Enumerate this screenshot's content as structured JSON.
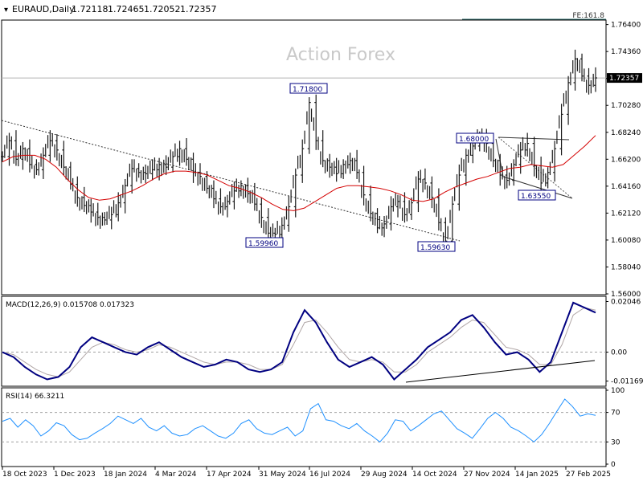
{
  "header": {
    "symbol": "EURAUD,Daily",
    "open": "1.72118",
    "high": "1.72465",
    "low": "1.72052",
    "close": "1.72357"
  },
  "watermark": "Action Forex",
  "fe_label": "FE:161.8",
  "macd_label": "MACD(12,26,9) 0.015708 0.017323",
  "rsi_label": "RSI(14) 66.3211",
  "colors": {
    "price": "#1a1a1a",
    "ma": "#d40000",
    "macd": "#000080",
    "signal": "#b0a6a6",
    "rsi": "#1e90ff",
    "grid_dash": "#a0a0a0",
    "current_price_bg": "#000000"
  },
  "chart_data": [
    {
      "type": "line",
      "name": "price-panel",
      "x_ticks": [
        "18 Oct 2023",
        "1 Dec 2023",
        "18 Jan 2024",
        "4 Mar 2024",
        "17 Apr 2024",
        "31 May 2024",
        "16 Jul 2024",
        "29 Aug 2024",
        "14 Oct 2024",
        "27 Nov 2024",
        "14 Jan 2025",
        "27 Feb 2025"
      ],
      "y_ticks": [
        "1.76400",
        "1.74360",
        "1.72320",
        "1.70280",
        "1.68240",
        "1.66200",
        "1.64160",
        "1.62120",
        "1.60080",
        "1.58040",
        "1.56000"
      ],
      "ylim": [
        1.56,
        1.7662
      ],
      "current_price": "1.72357",
      "series_close": [
        1.664,
        1.676,
        1.662,
        1.67,
        1.658,
        1.654,
        1.665,
        1.676,
        1.669,
        1.656,
        1.643,
        1.633,
        1.627,
        1.622,
        1.618,
        1.616,
        1.62,
        1.629,
        1.642,
        1.655,
        1.652,
        1.651,
        1.654,
        1.658,
        1.656,
        1.664,
        1.67,
        1.662,
        1.652,
        1.649,
        1.64,
        1.632,
        1.626,
        1.63,
        1.638,
        1.642,
        1.636,
        1.628,
        1.618,
        1.606,
        1.605,
        1.612,
        1.626,
        1.65,
        1.67,
        1.705,
        1.676,
        1.661,
        1.656,
        1.651,
        1.658,
        1.661,
        1.652,
        1.635,
        1.621,
        1.61,
        1.613,
        1.626,
        1.63,
        1.62,
        1.629,
        1.647,
        1.644,
        1.633,
        1.614,
        1.6,
        1.628,
        1.65,
        1.665,
        1.672,
        1.679,
        1.674,
        1.661,
        1.65,
        1.646,
        1.658,
        1.669,
        1.674,
        1.657,
        1.644,
        1.652,
        1.67,
        1.696,
        1.72,
        1.738,
        1.725,
        1.718,
        1.7236
      ],
      "series_ma": [
        1.66,
        1.664,
        1.665,
        1.665,
        1.662,
        1.656,
        1.647,
        1.639,
        1.633,
        1.631,
        1.632,
        1.635,
        1.638,
        1.642,
        1.647,
        1.651,
        1.653,
        1.653,
        1.652,
        1.65,
        1.646,
        1.642,
        1.64,
        1.637,
        1.633,
        1.628,
        1.624,
        1.623,
        1.625,
        1.63,
        1.635,
        1.64,
        1.642,
        1.642,
        1.641,
        1.64,
        1.638,
        1.635,
        1.631,
        1.63,
        1.632,
        1.637,
        1.641,
        1.644,
        1.647,
        1.649,
        1.652,
        1.655,
        1.656,
        1.658,
        1.657,
        1.656,
        1.658,
        1.665,
        1.672,
        1.68
      ],
      "labels": [
        "1.71800",
        "1.68000",
        "1.63550",
        "1.59960",
        "1.59630"
      ]
    },
    {
      "type": "line",
      "name": "macd-panel",
      "y_ticks": [
        "0.02046",
        "0.00",
        "-0.011697"
      ],
      "ylim": [
        -0.0128,
        0.0216
      ],
      "series_macd": [
        0.0,
        -0.002,
        -0.006,
        -0.009,
        -0.011,
        -0.01,
        -0.006,
        0.002,
        0.006,
        0.004,
        0.002,
        0.0,
        -0.001,
        0.002,
        0.004,
        0.001,
        -0.002,
        -0.004,
        -0.006,
        -0.005,
        -0.003,
        -0.004,
        -0.007,
        -0.008,
        -0.007,
        -0.004,
        0.008,
        0.017,
        0.012,
        0.004,
        -0.003,
        -0.006,
        -0.004,
        -0.002,
        -0.005,
        -0.011,
        -0.007,
        -0.003,
        0.002,
        0.005,
        0.008,
        0.013,
        0.015,
        0.01,
        0.004,
        -0.001,
        0.0,
        -0.003,
        -0.008,
        -0.004,
        0.008,
        0.02,
        0.018,
        0.016
      ],
      "series_signal": [
        0.0,
        -0.001,
        -0.004,
        -0.007,
        -0.009,
        -0.01,
        -0.008,
        -0.003,
        0.002,
        0.004,
        0.003,
        0.001,
        0.0,
        0.001,
        0.003,
        0.002,
        0.0,
        -0.002,
        -0.004,
        -0.005,
        -0.004,
        -0.004,
        -0.005,
        -0.007,
        -0.007,
        -0.005,
        0.003,
        0.012,
        0.013,
        0.008,
        0.002,
        -0.003,
        -0.004,
        -0.003,
        -0.004,
        -0.008,
        -0.008,
        -0.005,
        0.0,
        0.003,
        0.006,
        0.01,
        0.013,
        0.012,
        0.007,
        0.002,
        0.001,
        -0.001,
        -0.005,
        -0.005,
        0.003,
        0.015,
        0.018,
        0.017
      ]
    },
    {
      "type": "line",
      "name": "rsi-panel",
      "y_ticks": [
        "100",
        "70",
        "30",
        "0"
      ],
      "ylim": [
        0,
        100
      ],
      "levels": [
        70,
        30
      ],
      "series_rsi": [
        58,
        62,
        50,
        60,
        52,
        38,
        45,
        56,
        52,
        40,
        33,
        35,
        42,
        48,
        55,
        65,
        60,
        55,
        62,
        50,
        45,
        52,
        42,
        38,
        40,
        48,
        52,
        45,
        38,
        35,
        42,
        55,
        60,
        48,
        42,
        40,
        45,
        50,
        38,
        45,
        75,
        82,
        60,
        58,
        52,
        48,
        55,
        45,
        38,
        30,
        42,
        60,
        58,
        45,
        52,
        60,
        68,
        72,
        60,
        48,
        42,
        35,
        48,
        62,
        70,
        62,
        50,
        45,
        38,
        30,
        40,
        55,
        72,
        88,
        78,
        65,
        68,
        66
      ]
    }
  ]
}
